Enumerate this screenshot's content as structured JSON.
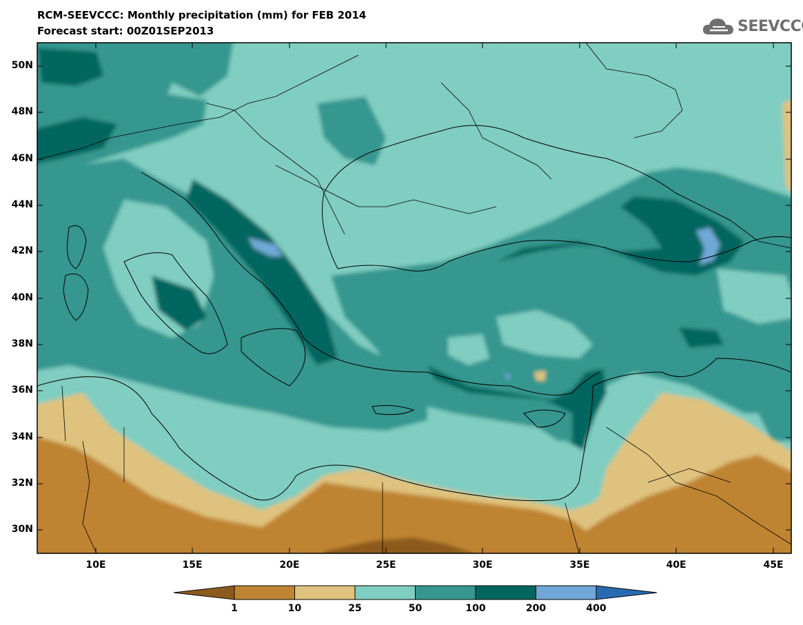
{
  "title_line1": "RCM-SEEVCCC: Monthly precipitation (mm) for FEB 2014",
  "title_line2": "Forecast start: 00Z01SEP2013",
  "logo": {
    "text": "SEEVCCC",
    "icon": "cloud-icon"
  },
  "map": {
    "variable": "Monthly precipitation (mm)",
    "lat_labels": [
      "50N",
      "48N",
      "46N",
      "44N",
      "42N",
      "40N",
      "38N",
      "36N",
      "34N",
      "32N",
      "30N"
    ],
    "lon_labels": [
      "10E",
      "15E",
      "20E",
      "25E",
      "30E",
      "35E",
      "40E",
      "45E"
    ]
  },
  "colors": {
    "lt1": "#8c5a1f",
    "c1_10": "#bf8433",
    "c10_25": "#dfc27d",
    "c25_50": "#80cdc1",
    "c50_100": "#35978f",
    "c100_200": "#01665e",
    "c200_400": "#6fa8d6",
    "gt400": "#2a6ab0"
  },
  "legend": {
    "ticks": [
      "1",
      "10",
      "25",
      "50",
      "100",
      "200",
      "400"
    ],
    "bins": [
      "<1",
      "1-10",
      "10-25",
      "25-50",
      "50-100",
      "100-200",
      "200-400",
      ">400"
    ]
  }
}
